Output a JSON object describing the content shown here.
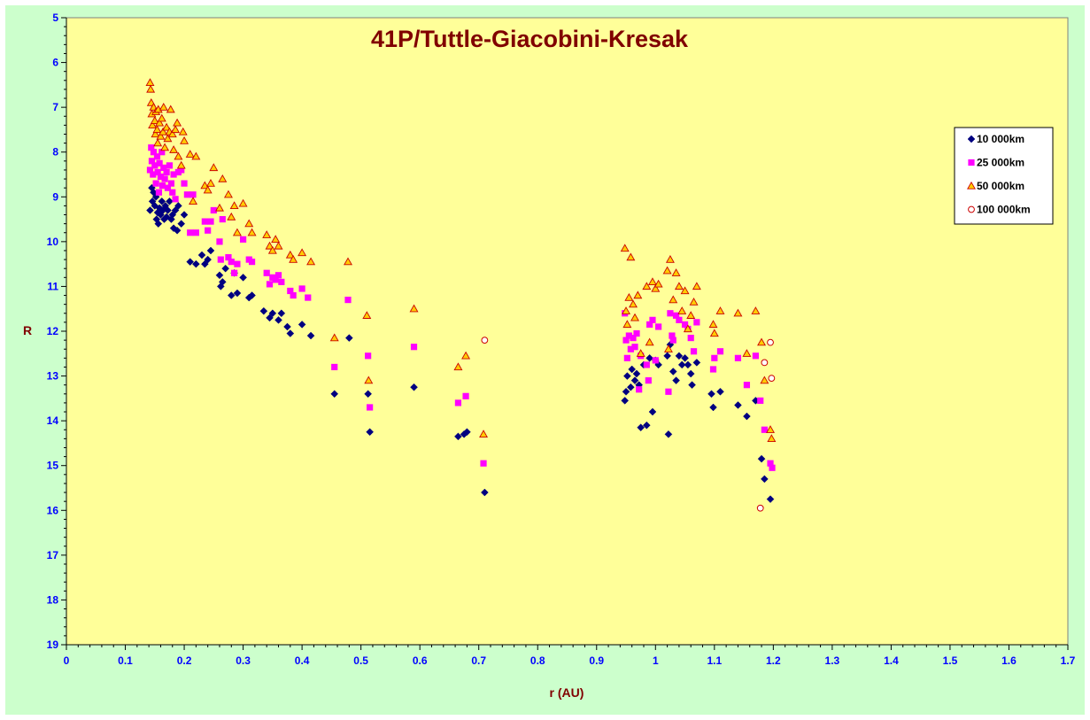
{
  "chart_data": {
    "type": "scatter",
    "title": "41P/Tuttle-Giacobini-Kresak",
    "xlabel": "r (AU)",
    "ylabel": "R",
    "xlim": [
      0,
      1.7
    ],
    "ylim": [
      5,
      19
    ],
    "y_reversed": true,
    "xticks": [
      "0",
      "0.1",
      "0.2",
      "0.3",
      "0.4",
      "0.5",
      "0.6",
      "0.7",
      "0.8",
      "0.9",
      "1",
      "1.1",
      "1.2",
      "1.3",
      "1.4",
      "1.5",
      "1.6",
      "1.7"
    ],
    "yticks": [
      "5",
      "6",
      "7",
      "8",
      "9",
      "10",
      "11",
      "12",
      "13",
      "14",
      "15",
      "16",
      "17",
      "18",
      "19"
    ],
    "grid": false,
    "legend_position": "right",
    "colors": {
      "plot_background": "#ffff99",
      "chart_background": "#ccffcc",
      "title": "#800000",
      "tick_labels": "#0000ff"
    },
    "series": [
      {
        "name": "10 000km",
        "marker": "diamond",
        "color": "#000080",
        "points": [
          [
            0.142,
            9.3
          ],
          [
            0.145,
            8.8
          ],
          [
            0.146,
            9.1
          ],
          [
            0.148,
            8.9
          ],
          [
            0.15,
            9.2
          ],
          [
            0.152,
            9.0
          ],
          [
            0.153,
            9.5
          ],
          [
            0.155,
            9.35
          ],
          [
            0.156,
            9.6
          ],
          [
            0.158,
            9.25
          ],
          [
            0.16,
            9.4
          ],
          [
            0.162,
            9.1
          ],
          [
            0.164,
            9.3
          ],
          [
            0.166,
            9.5
          ],
          [
            0.168,
            9.2
          ],
          [
            0.17,
            9.45
          ],
          [
            0.172,
            9.3
          ],
          [
            0.175,
            9.1
          ],
          [
            0.178,
            9.5
          ],
          [
            0.18,
            9.4
          ],
          [
            0.182,
            9.7
          ],
          [
            0.185,
            9.3
          ],
          [
            0.188,
            9.75
          ],
          [
            0.19,
            9.2
          ],
          [
            0.195,
            9.6
          ],
          [
            0.2,
            9.4
          ],
          [
            0.21,
            10.45
          ],
          [
            0.22,
            10.5
          ],
          [
            0.23,
            10.3
          ],
          [
            0.235,
            10.5
          ],
          [
            0.24,
            10.4
          ],
          [
            0.245,
            10.2
          ],
          [
            0.26,
            10.75
          ],
          [
            0.262,
            11.0
          ],
          [
            0.265,
            10.9
          ],
          [
            0.27,
            10.6
          ],
          [
            0.28,
            11.2
          ],
          [
            0.285,
            10.7
          ],
          [
            0.29,
            11.15
          ],
          [
            0.3,
            10.8
          ],
          [
            0.31,
            11.25
          ],
          [
            0.315,
            11.2
          ],
          [
            0.335,
            11.55
          ],
          [
            0.345,
            11.7
          ],
          [
            0.35,
            11.6
          ],
          [
            0.36,
            11.75
          ],
          [
            0.365,
            11.6
          ],
          [
            0.375,
            11.9
          ],
          [
            0.38,
            12.05
          ],
          [
            0.4,
            11.85
          ],
          [
            0.415,
            12.1
          ],
          [
            0.455,
            13.4
          ],
          [
            0.48,
            12.15
          ],
          [
            0.512,
            13.4
          ],
          [
            0.515,
            14.25
          ],
          [
            0.59,
            13.25
          ],
          [
            0.665,
            14.35
          ],
          [
            0.675,
            14.3
          ],
          [
            0.68,
            14.25
          ],
          [
            0.71,
            15.6
          ],
          [
            0.948,
            13.55
          ],
          [
            0.95,
            13.35
          ],
          [
            0.952,
            13.0
          ],
          [
            0.958,
            13.25
          ],
          [
            0.96,
            12.85
          ],
          [
            0.965,
            13.1
          ],
          [
            0.968,
            12.95
          ],
          [
            0.972,
            13.2
          ],
          [
            0.975,
            14.15
          ],
          [
            0.98,
            12.75
          ],
          [
            0.985,
            14.1
          ],
          [
            0.99,
            12.6
          ],
          [
            0.995,
            13.8
          ],
          [
            1.0,
            12.65
          ],
          [
            1.005,
            12.75
          ],
          [
            1.02,
            12.55
          ],
          [
            1.022,
            14.3
          ],
          [
            1.025,
            12.3
          ],
          [
            1.03,
            12.9
          ],
          [
            1.035,
            13.1
          ],
          [
            1.04,
            12.55
          ],
          [
            1.045,
            12.75
          ],
          [
            1.05,
            12.6
          ],
          [
            1.055,
            12.75
          ],
          [
            1.06,
            12.95
          ],
          [
            1.062,
            13.2
          ],
          [
            1.07,
            12.7
          ],
          [
            1.095,
            13.4
          ],
          [
            1.098,
            13.7
          ],
          [
            1.11,
            13.35
          ],
          [
            1.14,
            13.65
          ],
          [
            1.155,
            13.9
          ],
          [
            1.17,
            13.55
          ],
          [
            1.18,
            14.85
          ],
          [
            1.185,
            15.3
          ],
          [
            1.195,
            15.75
          ]
        ]
      },
      {
        "name": "25 000km",
        "marker": "square",
        "color": "#ff00ff",
        "points": [
          [
            0.142,
            8.4
          ],
          [
            0.144,
            7.9
          ],
          [
            0.145,
            8.2
          ],
          [
            0.147,
            8.5
          ],
          [
            0.148,
            8.0
          ],
          [
            0.15,
            8.3
          ],
          [
            0.152,
            8.7
          ],
          [
            0.154,
            8.1
          ],
          [
            0.155,
            8.45
          ],
          [
            0.157,
            8.9
          ],
          [
            0.158,
            8.25
          ],
          [
            0.16,
            8.55
          ],
          [
            0.162,
            8.0
          ],
          [
            0.163,
            8.75
          ],
          [
            0.165,
            8.35
          ],
          [
            0.167,
            8.6
          ],
          [
            0.17,
            8.45
          ],
          [
            0.172,
            8.8
          ],
          [
            0.175,
            8.3
          ],
          [
            0.178,
            8.7
          ],
          [
            0.18,
            8.9
          ],
          [
            0.182,
            8.5
          ],
          [
            0.185,
            9.05
          ],
          [
            0.19,
            8.45
          ],
          [
            0.195,
            8.4
          ],
          [
            0.2,
            8.7
          ],
          [
            0.205,
            8.95
          ],
          [
            0.21,
            9.8
          ],
          [
            0.215,
            8.95
          ],
          [
            0.22,
            9.8
          ],
          [
            0.235,
            9.55
          ],
          [
            0.24,
            9.75
          ],
          [
            0.245,
            9.55
          ],
          [
            0.25,
            9.3
          ],
          [
            0.26,
            10.0
          ],
          [
            0.262,
            10.4
          ],
          [
            0.265,
            9.5
          ],
          [
            0.275,
            10.35
          ],
          [
            0.28,
            10.45
          ],
          [
            0.285,
            10.7
          ],
          [
            0.29,
            10.5
          ],
          [
            0.3,
            9.95
          ],
          [
            0.31,
            10.4
          ],
          [
            0.315,
            10.45
          ],
          [
            0.34,
            10.7
          ],
          [
            0.345,
            10.95
          ],
          [
            0.35,
            10.8
          ],
          [
            0.355,
            10.85
          ],
          [
            0.36,
            10.75
          ],
          [
            0.365,
            10.9
          ],
          [
            0.38,
            11.1
          ],
          [
            0.385,
            11.2
          ],
          [
            0.4,
            11.05
          ],
          [
            0.41,
            11.25
          ],
          [
            0.455,
            12.8
          ],
          [
            0.478,
            11.3
          ],
          [
            0.512,
            12.55
          ],
          [
            0.515,
            13.7
          ],
          [
            0.59,
            12.35
          ],
          [
            0.665,
            13.6
          ],
          [
            0.678,
            13.45
          ],
          [
            0.708,
            14.95
          ],
          [
            0.948,
            11.6
          ],
          [
            0.95,
            12.2
          ],
          [
            0.952,
            12.6
          ],
          [
            0.955,
            12.1
          ],
          [
            0.958,
            12.4
          ],
          [
            0.962,
            12.15
          ],
          [
            0.965,
            12.35
          ],
          [
            0.968,
            12.05
          ],
          [
            0.972,
            13.3
          ],
          [
            0.975,
            12.55
          ],
          [
            0.985,
            12.75
          ],
          [
            0.988,
            13.1
          ],
          [
            0.99,
            11.85
          ],
          [
            0.995,
            11.75
          ],
          [
            1.0,
            12.65
          ],
          [
            1.005,
            11.9
          ],
          [
            1.022,
            13.35
          ],
          [
            1.025,
            11.6
          ],
          [
            1.028,
            12.1
          ],
          [
            1.03,
            12.2
          ],
          [
            1.035,
            11.65
          ],
          [
            1.04,
            11.75
          ],
          [
            1.05,
            11.85
          ],
          [
            1.055,
            11.95
          ],
          [
            1.06,
            12.15
          ],
          [
            1.065,
            12.45
          ],
          [
            1.07,
            11.8
          ],
          [
            1.098,
            12.85
          ],
          [
            1.1,
            12.6
          ],
          [
            1.11,
            12.45
          ],
          [
            1.14,
            12.6
          ],
          [
            1.155,
            13.2
          ],
          [
            1.17,
            12.55
          ],
          [
            1.178,
            13.55
          ],
          [
            1.185,
            14.2
          ],
          [
            1.195,
            14.95
          ],
          [
            1.198,
            15.05
          ]
        ]
      },
      {
        "name": "50 000km",
        "marker": "triangle",
        "color": "#ffcc00",
        "edge_color": "#cc0000",
        "points": [
          [
            0.142,
            6.45
          ],
          [
            0.143,
            6.6
          ],
          [
            0.144,
            6.9
          ],
          [
            0.145,
            7.15
          ],
          [
            0.146,
            7.4
          ],
          [
            0.148,
            7.0
          ],
          [
            0.15,
            7.3
          ],
          [
            0.151,
            7.6
          ],
          [
            0.152,
            7.1
          ],
          [
            0.154,
            7.5
          ],
          [
            0.155,
            7.8
          ],
          [
            0.156,
            7.05
          ],
          [
            0.158,
            7.35
          ],
          [
            0.16,
            7.65
          ],
          [
            0.162,
            7.25
          ],
          [
            0.164,
            7.55
          ],
          [
            0.165,
            7.0
          ],
          [
            0.167,
            7.9
          ],
          [
            0.17,
            7.45
          ],
          [
            0.172,
            7.7
          ],
          [
            0.175,
            7.55
          ],
          [
            0.177,
            7.05
          ],
          [
            0.18,
            7.6
          ],
          [
            0.182,
            7.95
          ],
          [
            0.185,
            7.5
          ],
          [
            0.188,
            7.35
          ],
          [
            0.19,
            8.1
          ],
          [
            0.195,
            8.3
          ],
          [
            0.198,
            7.55
          ],
          [
            0.2,
            7.75
          ],
          [
            0.21,
            8.05
          ],
          [
            0.215,
            9.1
          ],
          [
            0.22,
            8.1
          ],
          [
            0.235,
            8.75
          ],
          [
            0.24,
            8.85
          ],
          [
            0.245,
            8.7
          ],
          [
            0.25,
            8.35
          ],
          [
            0.26,
            9.25
          ],
          [
            0.265,
            8.6
          ],
          [
            0.275,
            8.95
          ],
          [
            0.28,
            9.45
          ],
          [
            0.285,
            9.2
          ],
          [
            0.29,
            9.8
          ],
          [
            0.3,
            9.15
          ],
          [
            0.31,
            9.6
          ],
          [
            0.315,
            9.8
          ],
          [
            0.34,
            9.85
          ],
          [
            0.345,
            10.1
          ],
          [
            0.35,
            10.2
          ],
          [
            0.355,
            9.95
          ],
          [
            0.36,
            10.1
          ],
          [
            0.38,
            10.3
          ],
          [
            0.385,
            10.4
          ],
          [
            0.4,
            10.25
          ],
          [
            0.415,
            10.45
          ],
          [
            0.455,
            12.15
          ],
          [
            0.478,
            10.45
          ],
          [
            0.51,
            11.65
          ],
          [
            0.513,
            13.1
          ],
          [
            0.59,
            11.5
          ],
          [
            0.665,
            12.8
          ],
          [
            0.678,
            12.55
          ],
          [
            0.708,
            14.3
          ],
          [
            0.948,
            10.15
          ],
          [
            0.95,
            11.55
          ],
          [
            0.952,
            11.85
          ],
          [
            0.955,
            11.25
          ],
          [
            0.958,
            10.35
          ],
          [
            0.962,
            11.4
          ],
          [
            0.965,
            11.7
          ],
          [
            0.97,
            11.2
          ],
          [
            0.975,
            12.5
          ],
          [
            0.985,
            11.0
          ],
          [
            0.99,
            12.25
          ],
          [
            0.995,
            10.9
          ],
          [
            1.0,
            11.05
          ],
          [
            1.005,
            10.95
          ],
          [
            1.02,
            10.65
          ],
          [
            1.022,
            12.4
          ],
          [
            1.025,
            10.4
          ],
          [
            1.03,
            11.3
          ],
          [
            1.035,
            10.7
          ],
          [
            1.04,
            11.0
          ],
          [
            1.045,
            11.55
          ],
          [
            1.05,
            11.1
          ],
          [
            1.055,
            11.95
          ],
          [
            1.06,
            11.65
          ],
          [
            1.065,
            11.35
          ],
          [
            1.07,
            11.0
          ],
          [
            1.098,
            11.85
          ],
          [
            1.1,
            12.05
          ],
          [
            1.11,
            11.55
          ],
          [
            1.14,
            11.6
          ],
          [
            1.155,
            12.5
          ],
          [
            1.17,
            11.55
          ],
          [
            1.18,
            12.25
          ],
          [
            1.185,
            13.1
          ],
          [
            1.195,
            14.2
          ],
          [
            1.197,
            14.4
          ]
        ]
      },
      {
        "name": "100 000km",
        "marker": "circle",
        "color": "#ffffff",
        "edge_color": "#cc0000",
        "points": [
          [
            0.71,
            12.2
          ],
          [
            1.178,
            15.95
          ],
          [
            1.185,
            12.7
          ],
          [
            1.195,
            12.25
          ],
          [
            1.197,
            13.05
          ]
        ]
      }
    ]
  }
}
